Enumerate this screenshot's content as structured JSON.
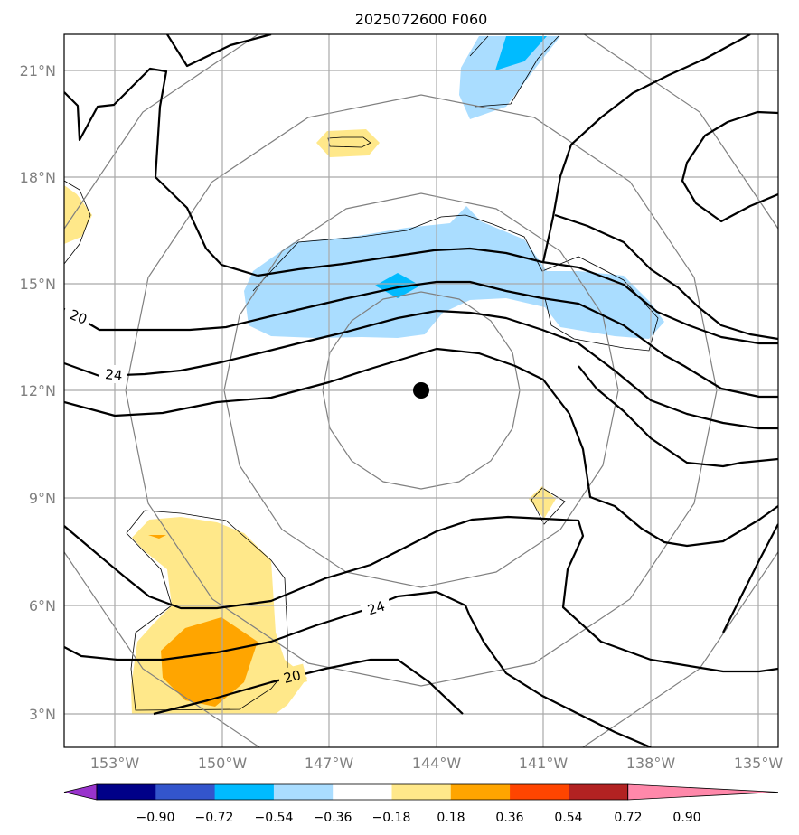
{
  "title": "2025072600 F060",
  "map": {
    "lat_ticks": [
      "21°N",
      "18°N",
      "15°N",
      "12°N",
      "9°N",
      "6°N",
      "3°N"
    ],
    "lon_ticks": [
      "153°W",
      "150°W",
      "147°W",
      "144°W",
      "141°W",
      "138°W",
      "135°W"
    ],
    "storm_center": "black-dot",
    "contour_labels": [
      "20",
      "24",
      "24",
      "20"
    ]
  },
  "colorbar": {
    "ticks": [
      "−0.90",
      "−0.72",
      "−0.54",
      "−0.36",
      "−0.18",
      "0.18",
      "0.36",
      "0.54",
      "0.72",
      "0.90"
    ],
    "colors": [
      "#9933cc",
      "#000088",
      "#3355cc",
      "#00bbff",
      "#aaddff",
      "#ffffff",
      "#ffe88a",
      "#ffa500",
      "#ff4500",
      "#b22222",
      "#ff88aa"
    ]
  }
}
